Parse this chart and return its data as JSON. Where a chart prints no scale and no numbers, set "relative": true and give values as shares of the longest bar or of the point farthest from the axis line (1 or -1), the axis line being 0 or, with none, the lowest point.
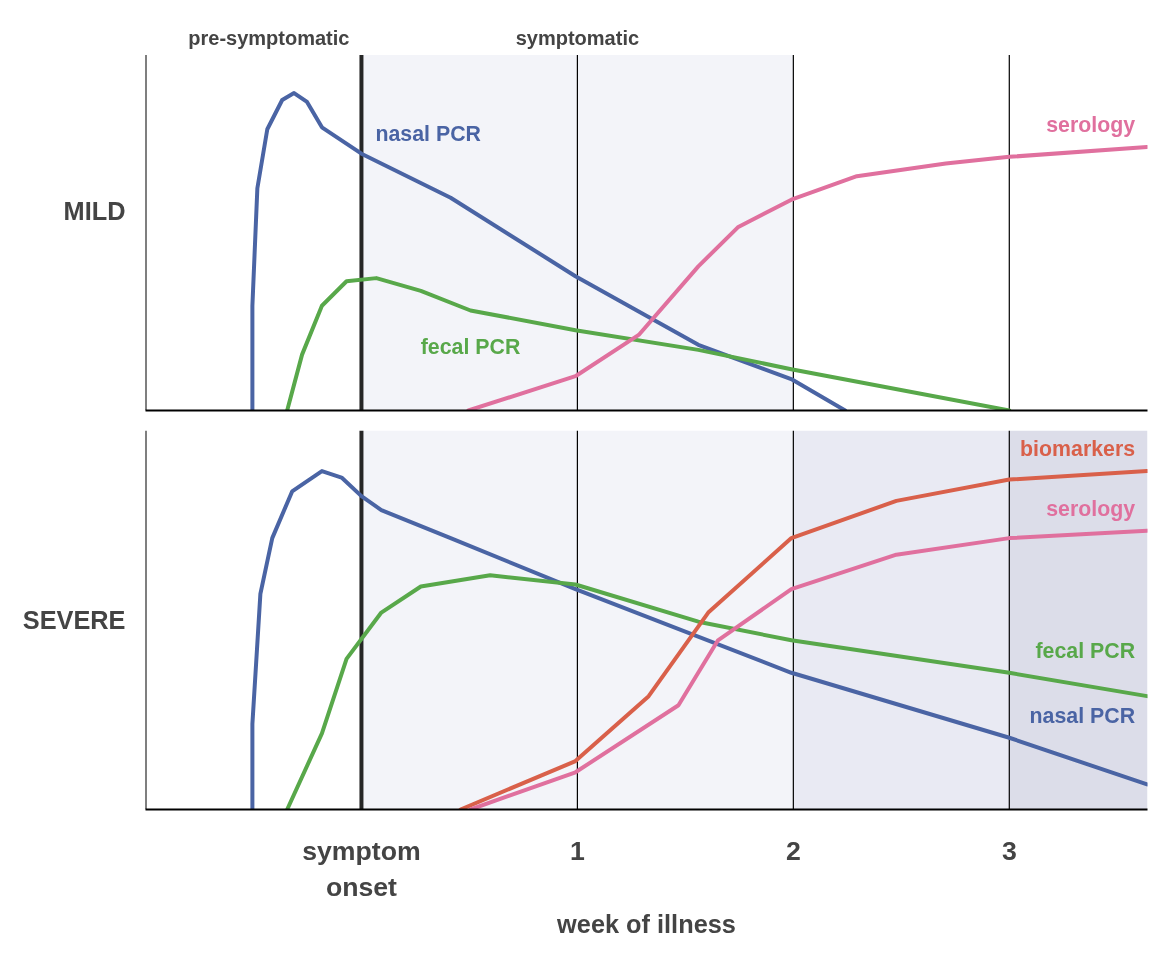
{
  "chart_data": [
    {
      "type": "line",
      "relative": true,
      "ylabel": "MILD",
      "xlim": [
        -1,
        3.64
      ],
      "tick_labels": false,
      "annotations": [
        "pre-symptomatic",
        "symptomatic"
      ],
      "bands": [
        {
          "axis": "x",
          "from": 0,
          "to": 2,
          "color": "#f3f4f9"
        }
      ],
      "ref_lines": [
        {
          "axis": "x",
          "value": 0,
          "color": "#262626"
        },
        {
          "axis": "x",
          "value": 1,
          "color": "#000000"
        },
        {
          "axis": "x",
          "value": 2,
          "color": "#000000"
        },
        {
          "axis": "x",
          "value": 3,
          "color": "#000000"
        }
      ],
      "series": [
        {
          "name": "nasal PCR",
          "color": "#4a64a4",
          "x": [
            -0.505,
            -0.505,
            -0.482,
            -0.436,
            -0.367,
            -0.312,
            -0.252,
            -0.183,
            0,
            0.413,
            0.991,
            1.56,
            1.99,
            2.24
          ],
          "values": [
            0,
            0.33,
            0.7,
            0.886,
            0.978,
            1,
            0.972,
            0.892,
            0.809,
            0.67,
            0.423,
            0.207,
            0.099,
            0
          ]
        },
        {
          "name": "fecal PCR",
          "color": "#58a84a",
          "x": [
            -0.344,
            -0.275,
            -0.183,
            -0.069,
            0.069,
            0.275,
            0.505,
            0.991,
            1.56,
            1.99,
            3.0
          ],
          "values": [
            0,
            0.176,
            0.33,
            0.407,
            0.417,
            0.377,
            0.315,
            0.253,
            0.191,
            0.13,
            0
          ]
        },
        {
          "name": "serology",
          "color": "#e0709e",
          "x": [
            0.495,
            0.991,
            1.284,
            1.56,
            1.743,
            1.991,
            2.294,
            2.706,
            3.0,
            3.638
          ],
          "values": [
            0,
            0.108,
            0.238,
            0.454,
            0.577,
            0.664,
            0.738,
            0.778,
            0.799,
            0.83
          ]
        }
      ]
    },
    {
      "type": "line",
      "relative": true,
      "ylabel": "SEVERE",
      "xlabel": "week of illness",
      "xlim": [
        -1,
        3.64
      ],
      "xticks": [
        {
          "value": 0,
          "label": "symptom\nonset"
        },
        1,
        2,
        3
      ],
      "tick_labels": "x",
      "bands": [
        {
          "axis": "x",
          "from": 0,
          "to": 2,
          "color": "#f3f4f9"
        },
        {
          "axis": "x",
          "from": 2,
          "to": 3,
          "color": "#e9eaf3"
        },
        {
          "axis": "x",
          "from": 3,
          "to": 3.64,
          "color": "#dcdde9"
        }
      ],
      "ref_lines": [
        {
          "axis": "x",
          "value": 0,
          "color": "#262626"
        },
        {
          "axis": "x",
          "value": 1,
          "color": "#000000"
        },
        {
          "axis": "x",
          "value": 2,
          "color": "#000000"
        },
        {
          "axis": "x",
          "value": 3,
          "color": "#000000"
        }
      ],
      "series": [
        {
          "name": "nasal PCR",
          "color": "#4a64a4",
          "x": [
            -0.505,
            -0.505,
            -0.468,
            -0.413,
            -0.321,
            -0.183,
            -0.092,
            0,
            0.092,
            0.413,
            0.991,
            1.991,
            3.0,
            3.638
          ],
          "values": [
            0,
            0.253,
            0.637,
            0.802,
            0.94,
            1,
            0.981,
            0.926,
            0.885,
            0.802,
            0.651,
            0.404,
            0.212,
            0.074
          ]
        },
        {
          "name": "fecal PCR",
          "color": "#58a84a",
          "x": [
            -0.344,
            -0.183,
            -0.069,
            0.092,
            0.275,
            0.596,
            0.991,
            1.56,
            1.991,
            3.0,
            3.638
          ],
          "values": [
            0,
            0.225,
            0.445,
            0.582,
            0.659,
            0.692,
            0.665,
            0.555,
            0.5,
            0.404,
            0.335
          ]
        },
        {
          "name": "biomarkers",
          "color": "#d9604a",
          "x": [
            0.459,
            0.991,
            1.33,
            1.606,
            1.991,
            2.477,
            3.0,
            3.638
          ],
          "values": [
            0,
            0.143,
            0.335,
            0.582,
            0.802,
            0.912,
            0.975,
            1
          ]
        },
        {
          "name": "serology",
          "color": "#e0709e",
          "x": [
            0.505,
            0.991,
            1.468,
            1.651,
            1.991,
            2.477,
            3.0,
            3.638
          ],
          "values": [
            0,
            0.11,
            0.308,
            0.5,
            0.651,
            0.753,
            0.802,
            0.824
          ]
        }
      ]
    }
  ]
}
